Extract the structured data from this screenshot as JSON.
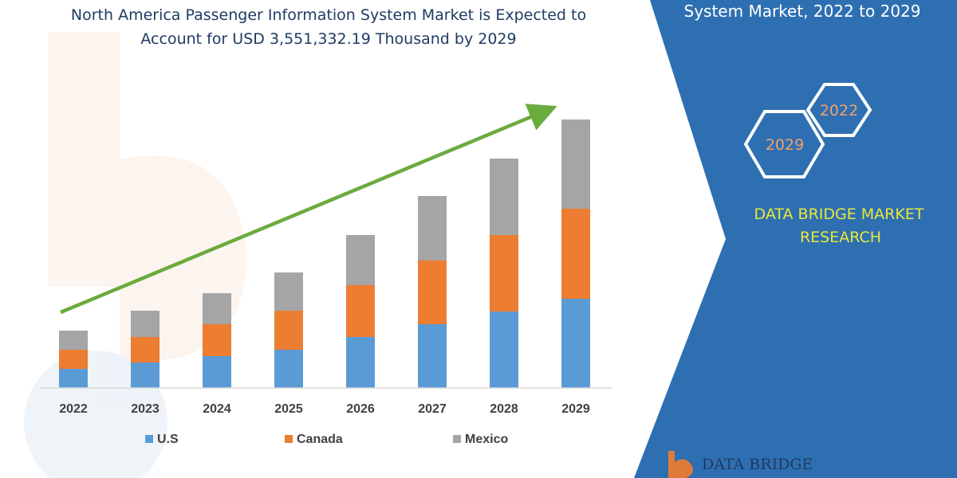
{
  "header": {
    "title_lines": [
      "North America Passenger Information System Market is Expected to",
      "Account for USD 3,551,332.19 Thousand by 2029"
    ]
  },
  "side_panel": {
    "title": "System Market, 2022 to 2029",
    "hex_labels": [
      "2022",
      "2029"
    ],
    "brand_lines": [
      "DATA BRIDGE MARKET",
      "RESEARCH"
    ],
    "logo_text": "DATA BRIDGE",
    "color": "#2e6fb2"
  },
  "chart_data": {
    "type": "bar",
    "stacked": true,
    "categories": [
      "2022",
      "2023",
      "2024",
      "2025",
      "2026",
      "2027",
      "2028",
      "2029"
    ],
    "series": [
      {
        "name": "U.S",
        "color": "#5b9bd5",
        "values": [
          24,
          32,
          40,
          48,
          64,
          80,
          96,
          112
        ]
      },
      {
        "name": "Canada",
        "color": "#ed7d31",
        "values": [
          24,
          32,
          40,
          49,
          65,
          80,
          96,
          113
        ]
      },
      {
        "name": "Mexico",
        "color": "#a5a5a5",
        "values": [
          24,
          33,
          39,
          48,
          63,
          81,
          96,
          112
        ]
      }
    ],
    "ylim": [
      0,
      340
    ],
    "grid": false,
    "trend_arrow": {
      "color": "#6aab3e"
    },
    "legend_position": "bottom"
  }
}
